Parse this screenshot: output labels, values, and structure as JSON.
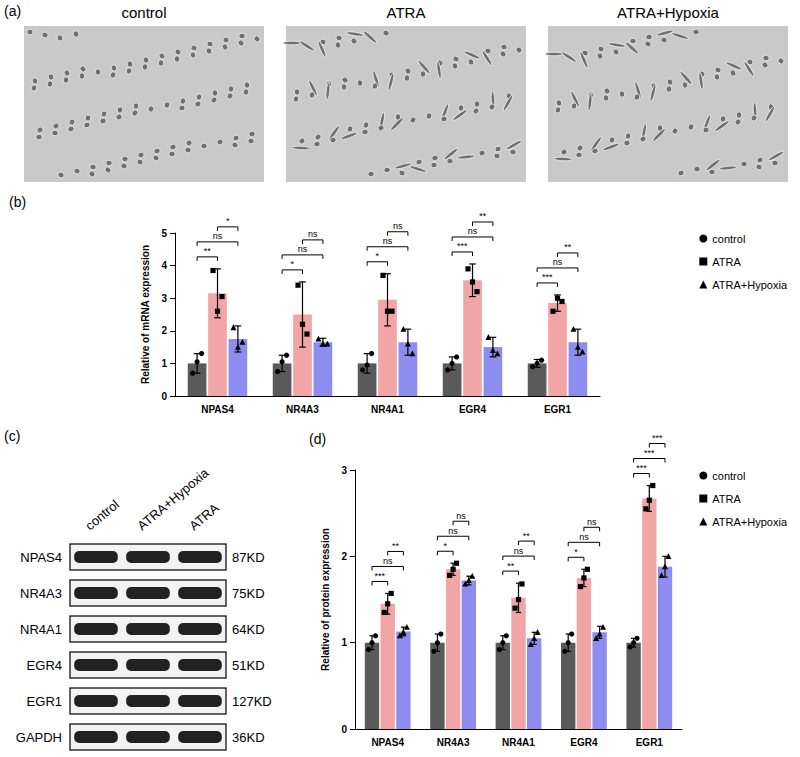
{
  "micrographs": {
    "label": "(a)",
    "titles": [
      "control",
      "ATRA",
      "ATRA+Hypoxia"
    ]
  },
  "western_blot": {
    "label": "(c)",
    "lanes": [
      "control",
      "ATRA+Hypoxia",
      "ATRA"
    ],
    "rows": [
      {
        "protein": "NPAS4",
        "size": "87KD"
      },
      {
        "protein": "NR4A3",
        "size": "75KD"
      },
      {
        "protein": "NR4A1",
        "size": "64KD"
      },
      {
        "protein": "EGR4",
        "size": "51KD"
      },
      {
        "protein": "EGR1",
        "size": "127KD"
      },
      {
        "protein": "GAPDH",
        "size": "36KD"
      }
    ]
  },
  "chart_data": [
    {
      "type": "bar",
      "label": "(b)",
      "y_label": "Relative of mRNA expression",
      "categories": [
        "NPAS4",
        "NR4A3",
        "NR4A1",
        "EGR4",
        "EGR1"
      ],
      "ylim": [
        0,
        5
      ],
      "yticks": [
        0,
        1,
        2,
        3,
        4,
        5
      ],
      "grid": false,
      "legend": "right",
      "series": [
        {
          "name": "control",
          "color": "#5a5a5a",
          "marker": "circle",
          "values": [
            1.0,
            1.0,
            1.0,
            1.0,
            1.0
          ],
          "errors": [
            0.3,
            0.25,
            0.3,
            0.2,
            0.12
          ],
          "points": [
            [
              0.7,
              1.05,
              1.3
            ],
            [
              0.75,
              1.05,
              1.25
            ],
            [
              0.8,
              0.95,
              1.3
            ],
            [
              0.8,
              1.0,
              1.2
            ],
            [
              0.9,
              1.0,
              1.1
            ]
          ]
        },
        {
          "name": "ATRA",
          "color": "#f2a5a7",
          "marker": "square",
          "values": [
            3.15,
            2.5,
            2.95,
            3.55,
            2.85
          ],
          "errors": [
            0.75,
            1.0,
            0.8,
            0.5,
            0.25
          ],
          "points": [
            [
              3.85,
              2.6,
              3.05
            ],
            [
              3.4,
              2.2,
              1.9
            ],
            [
              3.7,
              2.6,
              2.6
            ],
            [
              3.9,
              3.5,
              3.2
            ],
            [
              2.6,
              3.0,
              2.9
            ]
          ]
        },
        {
          "name": "ATRA+Hypoxia",
          "color": "#8d8def",
          "marker": "triangle",
          "values": [
            1.75,
            1.65,
            1.65,
            1.5,
            1.65
          ],
          "errors": [
            0.4,
            0.12,
            0.4,
            0.3,
            0.4
          ],
          "points": [
            [
              2.1,
              1.5,
              1.65
            ],
            [
              1.75,
              1.6,
              1.6
            ],
            [
              2.05,
              1.6,
              1.3
            ],
            [
              1.8,
              1.4,
              1.3
            ],
            [
              2.05,
              1.5,
              1.35
            ]
          ]
        }
      ],
      "significance": [
        {
          "category": "NPAS4",
          "groups": [
            "control",
            "ATRA"
          ],
          "label": "**"
        },
        {
          "category": "NPAS4",
          "groups": [
            "control",
            "ATRA+Hypoxia"
          ],
          "label": "ns"
        },
        {
          "category": "NPAS4",
          "groups": [
            "ATRA",
            "ATRA+Hypoxia"
          ],
          "label": "*"
        },
        {
          "category": "NR4A3",
          "groups": [
            "control",
            "ATRA"
          ],
          "label": "*"
        },
        {
          "category": "NR4A3",
          "groups": [
            "control",
            "ATRA+Hypoxia"
          ],
          "label": "ns"
        },
        {
          "category": "NR4A3",
          "groups": [
            "ATRA",
            "ATRA+Hypoxia"
          ],
          "label": "ns"
        },
        {
          "category": "NR4A1",
          "groups": [
            "control",
            "ATRA"
          ],
          "label": "*"
        },
        {
          "category": "NR4A1",
          "groups": [
            "control",
            "ATRA+Hypoxia"
          ],
          "label": "ns"
        },
        {
          "category": "NR4A1",
          "groups": [
            "ATRA",
            "ATRA+Hypoxia"
          ],
          "label": "ns"
        },
        {
          "category": "EGR4",
          "groups": [
            "control",
            "ATRA"
          ],
          "label": "***"
        },
        {
          "category": "EGR4",
          "groups": [
            "control",
            "ATRA+Hypoxia"
          ],
          "label": "ns"
        },
        {
          "category": "EGR4",
          "groups": [
            "ATRA",
            "ATRA+Hypoxia"
          ],
          "label": "**"
        },
        {
          "category": "EGR1",
          "groups": [
            "control",
            "ATRA"
          ],
          "label": "***"
        },
        {
          "category": "EGR1",
          "groups": [
            "control",
            "ATRA+Hypoxia"
          ],
          "label": "ns"
        },
        {
          "category": "EGR1",
          "groups": [
            "ATRA",
            "ATRA+Hypoxia"
          ],
          "label": "**"
        }
      ]
    },
    {
      "type": "bar",
      "label": "(d)",
      "y_label": "Relative of protein expression",
      "categories": [
        "NPAS4",
        "NR4A3",
        "NR4A1",
        "EGR4",
        "EGR1"
      ],
      "ylim": [
        0,
        3
      ],
      "yticks": [
        0,
        1,
        2,
        3
      ],
      "grid": false,
      "legend": "right",
      "series": [
        {
          "name": "control",
          "color": "#5a5a5a",
          "marker": "circle",
          "values": [
            1.0,
            1.0,
            1.0,
            1.0,
            1.0
          ],
          "errors": [
            0.08,
            0.1,
            0.08,
            0.1,
            0.05
          ],
          "points": [
            [
              0.92,
              1.0,
              1.08
            ],
            [
              0.9,
              1.0,
              1.1
            ],
            [
              0.92,
              1.0,
              1.08
            ],
            [
              0.9,
              1.0,
              1.1
            ],
            [
              0.95,
              1.0,
              1.05
            ]
          ]
        },
        {
          "name": "ATRA",
          "color": "#f2a5a7",
          "marker": "square",
          "values": [
            1.45,
            1.85,
            1.52,
            1.75,
            2.67
          ],
          "errors": [
            0.12,
            0.07,
            0.17,
            0.1,
            0.15
          ],
          "points": [
            [
              1.35,
              1.45,
              1.57
            ],
            [
              1.78,
              1.85,
              1.92
            ],
            [
              1.4,
              1.5,
              1.68
            ],
            [
              1.65,
              1.75,
              1.85
            ],
            [
              2.55,
              2.65,
              2.82
            ]
          ]
        },
        {
          "name": "ATRA+Hypoxia",
          "color": "#8d8def",
          "marker": "triangle",
          "values": [
            1.13,
            1.72,
            1.05,
            1.12,
            1.88
          ],
          "errors": [
            0.05,
            0.05,
            0.07,
            0.07,
            0.12
          ],
          "points": [
            [
              1.08,
              1.12,
              1.18
            ],
            [
              1.68,
              1.72,
              1.77
            ],
            [
              0.98,
              1.05,
              1.12
            ],
            [
              1.05,
              1.1,
              1.18
            ],
            [
              1.78,
              1.88,
              2.0
            ]
          ]
        }
      ],
      "significance": [
        {
          "category": "NPAS4",
          "groups": [
            "control",
            "ATRA"
          ],
          "label": "***"
        },
        {
          "category": "NPAS4",
          "groups": [
            "control",
            "ATRA+Hypoxia"
          ],
          "label": "ns"
        },
        {
          "category": "NPAS4",
          "groups": [
            "ATRA",
            "ATRA+Hypoxia"
          ],
          "label": "**"
        },
        {
          "category": "NR4A3",
          "groups": [
            "control",
            "ATRA"
          ],
          "label": "*"
        },
        {
          "category": "NR4A3",
          "groups": [
            "control",
            "ATRA+Hypoxia"
          ],
          "label": "ns"
        },
        {
          "category": "NR4A3",
          "groups": [
            "ATRA",
            "ATRA+Hypoxia"
          ],
          "label": "ns"
        },
        {
          "category": "NR4A1",
          "groups": [
            "control",
            "ATRA"
          ],
          "label": "**"
        },
        {
          "category": "NR4A1",
          "groups": [
            "control",
            "ATRA+Hypoxia"
          ],
          "label": "ns"
        },
        {
          "category": "NR4A1",
          "groups": [
            "ATRA",
            "ATRA+Hypoxia"
          ],
          "label": "**"
        },
        {
          "category": "EGR4",
          "groups": [
            "control",
            "ATRA"
          ],
          "label": "*"
        },
        {
          "category": "EGR4",
          "groups": [
            "control",
            "ATRA+Hypoxia"
          ],
          "label": "ns"
        },
        {
          "category": "EGR4",
          "groups": [
            "ATRA",
            "ATRA+Hypoxia"
          ],
          "label": "ns"
        },
        {
          "category": "EGR1",
          "groups": [
            "control",
            "ATRA"
          ],
          "label": "***"
        },
        {
          "category": "EGR1",
          "groups": [
            "control",
            "ATRA+Hypoxia"
          ],
          "label": "***"
        },
        {
          "category": "EGR1",
          "groups": [
            "ATRA",
            "ATRA+Hypoxia"
          ],
          "label": "***"
        }
      ]
    }
  ]
}
